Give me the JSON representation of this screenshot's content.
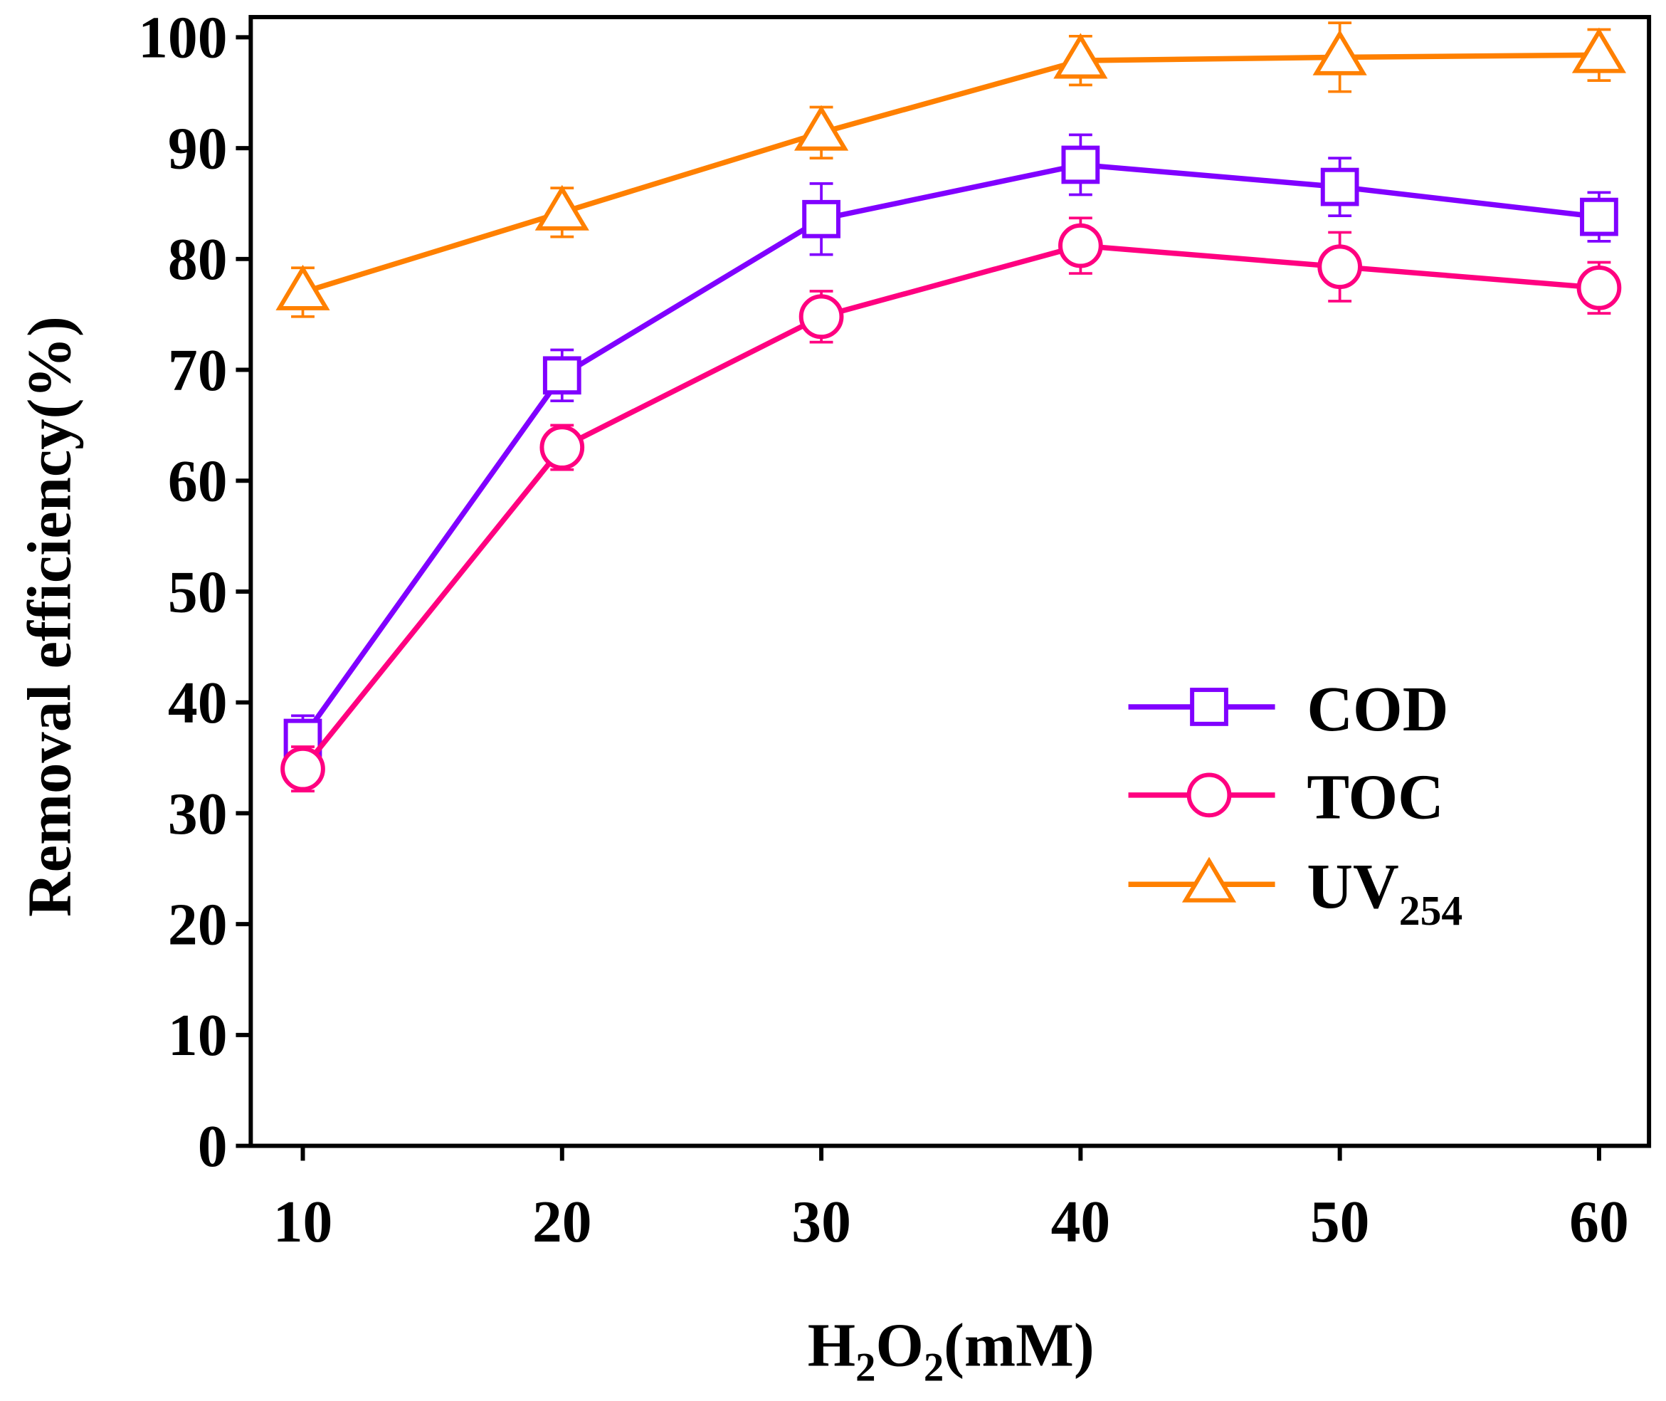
{
  "chart_data": {
    "type": "line",
    "title": "",
    "xlabel": {
      "main": "H",
      "sub1": "2",
      "mid": "O",
      "sub2": "2",
      "tail": "(mM)"
    },
    "ylabel": "Removal efficiency(%)",
    "xlim": [
      8,
      62
    ],
    "ylim": [
      0,
      100
    ],
    "x": [
      10,
      20,
      30,
      40,
      50,
      60
    ],
    "xticks": [
      10,
      20,
      30,
      40,
      50,
      60
    ],
    "yticks": [
      0,
      10,
      20,
      30,
      40,
      50,
      60,
      70,
      80,
      90,
      100
    ],
    "grid": false,
    "legend_position": "center-right",
    "series": [
      {
        "name": "COD",
        "name_sub": "",
        "marker": "square",
        "color": "#8000FF",
        "values": [
          36.8,
          69.5,
          83.6,
          88.5,
          86.5,
          83.8
        ],
        "errors": [
          2.0,
          2.3,
          3.2,
          2.7,
          2.6,
          2.2
        ]
      },
      {
        "name": "TOC",
        "name_sub": "",
        "marker": "circle",
        "color": "#FF0080",
        "values": [
          34.0,
          63.0,
          74.8,
          81.2,
          79.3,
          77.4
        ],
        "errors": [
          2.0,
          2.0,
          2.3,
          2.5,
          3.1,
          2.3
        ]
      },
      {
        "name": "UV",
        "name_sub": "254",
        "marker": "triangle",
        "color": "#FF8000",
        "values": [
          77.0,
          84.2,
          91.4,
          97.9,
          98.2,
          98.4
        ],
        "errors": [
          2.2,
          2.2,
          2.3,
          2.2,
          3.1,
          2.3
        ]
      }
    ]
  }
}
